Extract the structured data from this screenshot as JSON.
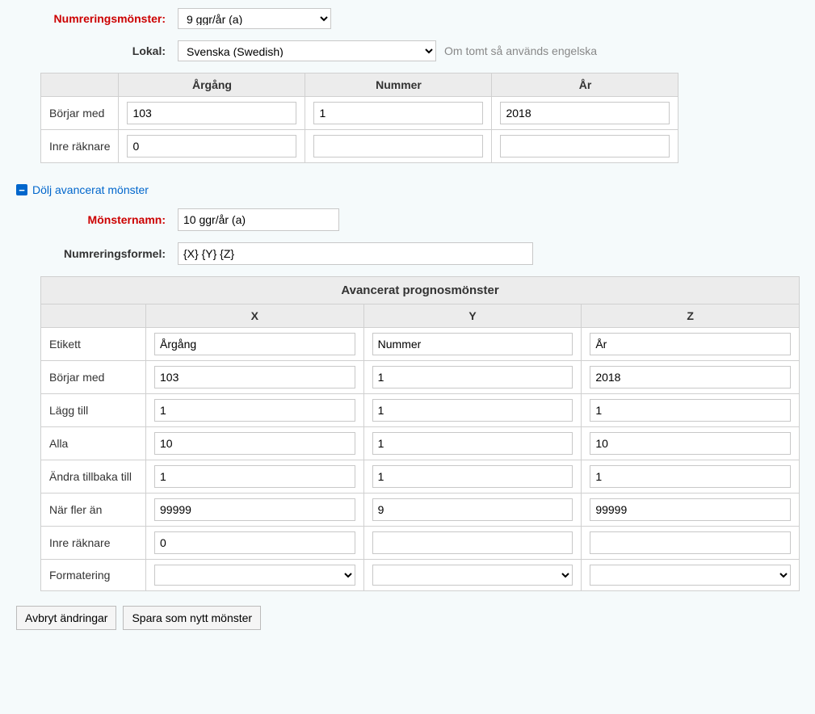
{
  "labels": {
    "numrering": "Numreringsmönster:",
    "lokal": "Lokal:",
    "hint": "Om tomt så används engelska",
    "toggle": "Dölj avancerat mönster",
    "monsternamn": "Mönsternamn:",
    "formel": "Numreringsformel:",
    "advanced_caption": "Avancerat prognosmönster",
    "cancel": "Avbryt ändringar",
    "save": "Spara som nytt mönster"
  },
  "selects": {
    "numrering_value": "9 ggr/år (a)",
    "lokal_value": "Svenska (Swedish)"
  },
  "inputs": {
    "monsternamn": "10 ggr/år (a)",
    "formel": "{X} {Y} {Z}"
  },
  "top_table": {
    "headers": [
      "Årgång",
      "Nummer",
      "År"
    ],
    "rows": [
      {
        "label": "Börjar med",
        "values": [
          "103",
          "1",
          "2018"
        ]
      },
      {
        "label": "Inre räknare",
        "values": [
          "0",
          "",
          ""
        ]
      }
    ]
  },
  "adv_table": {
    "headers": [
      "X",
      "Y",
      "Z"
    ],
    "rows": [
      {
        "label": "Etikett",
        "type": "text",
        "values": [
          "Årgång",
          "Nummer",
          "År"
        ]
      },
      {
        "label": "Börjar med",
        "type": "text",
        "values": [
          "103",
          "1",
          "2018"
        ]
      },
      {
        "label": "Lägg till",
        "type": "text",
        "values": [
          "1",
          "1",
          "1"
        ]
      },
      {
        "label": "Alla",
        "type": "text",
        "values": [
          "10",
          "1",
          "10"
        ]
      },
      {
        "label": "Ändra tillbaka till",
        "type": "text",
        "values": [
          "1",
          "1",
          "1"
        ]
      },
      {
        "label": "När fler än",
        "type": "text",
        "values": [
          "99999",
          "9",
          "99999"
        ]
      },
      {
        "label": "Inre räknare",
        "type": "text",
        "values": [
          "0",
          "",
          ""
        ]
      },
      {
        "label": "Formatering",
        "type": "select",
        "values": [
          "",
          "",
          ""
        ]
      }
    ]
  }
}
